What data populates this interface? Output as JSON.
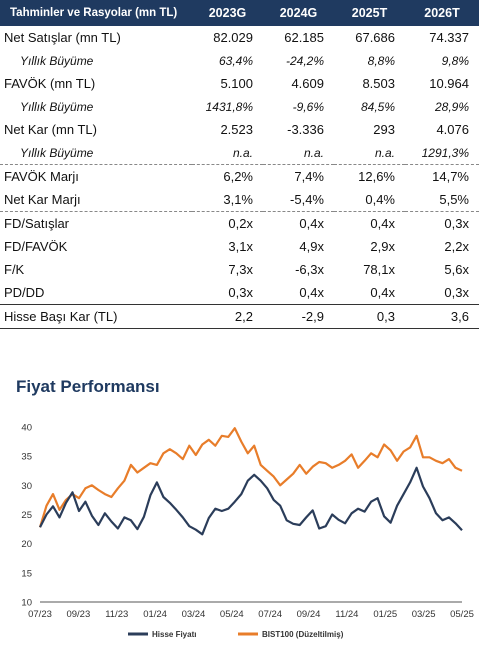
{
  "table": {
    "header": [
      "Tahminler ve Rasyolar (mn TL)",
      "2023G",
      "2024G",
      "2025T",
      "2026T"
    ],
    "rows": [
      {
        "label": "Net Satışlar (mn TL)",
        "values": [
          "82.029",
          "62.185",
          "67.686",
          "74.337"
        ],
        "style": "normal",
        "sep": ""
      },
      {
        "label": "Yıllık Büyüme",
        "values": [
          "63,4%",
          "-24,2%",
          "8,8%",
          "9,8%"
        ],
        "style": "growth",
        "sep": ""
      },
      {
        "label": "FAVÖK (mn TL)",
        "values": [
          "5.100",
          "4.609",
          "8.503",
          "10.964"
        ],
        "style": "normal",
        "sep": ""
      },
      {
        "label": "Yıllık Büyüme",
        "values": [
          "1431,8%",
          "-9,6%",
          "84,5%",
          "28,9%"
        ],
        "style": "growth",
        "sep": ""
      },
      {
        "label": "Net Kar (mn TL)",
        "values": [
          "2.523",
          "-3.336",
          "293",
          "4.076"
        ],
        "style": "normal",
        "sep": ""
      },
      {
        "label": "Yıllık Büyüme",
        "values": [
          "n.a.",
          "n.a.",
          "n.a.",
          "1291,3%"
        ],
        "style": "growth",
        "sep": ""
      },
      {
        "label": "FAVÖK Marjı",
        "values": [
          "6,2%",
          "7,4%",
          "12,6%",
          "14,7%"
        ],
        "style": "normal",
        "sep": "dotted"
      },
      {
        "label": "Net Kar Marjı",
        "values": [
          "3,1%",
          "-5,4%",
          "0,4%",
          "5,5%"
        ],
        "style": "normal",
        "sep": ""
      },
      {
        "label": "FD/Satışlar",
        "values": [
          "0,2x",
          "0,4x",
          "0,4x",
          "0,3x"
        ],
        "style": "normal",
        "sep": "dotted"
      },
      {
        "label": "FD/FAVÖK",
        "values": [
          "3,1x",
          "4,9x",
          "2,9x",
          "2,2x"
        ],
        "style": "normal",
        "sep": ""
      },
      {
        "label": "F/K",
        "values": [
          "7,3x",
          "-6,3x",
          "78,1x",
          "5,6x"
        ],
        "style": "normal",
        "sep": ""
      },
      {
        "label": "PD/DD",
        "values": [
          "0,3x",
          "0,4x",
          "0,4x",
          "0,3x"
        ],
        "style": "normal",
        "sep": ""
      },
      {
        "label": "Hisse Başı Kar (TL)",
        "values": [
          "2,2",
          "-2,9",
          "0,3",
          "3,6"
        ],
        "style": "normal",
        "sep": "solid"
      }
    ]
  },
  "chart_title": "Fiyat Performansı",
  "chart_data": {
    "type": "line",
    "title": "Fiyat Performansı",
    "x_tick_labels": [
      "07/23",
      "09/23",
      "11/23",
      "01/24",
      "03/24",
      "05/24",
      "07/24",
      "09/24",
      "11/24",
      "01/25",
      "03/25",
      "05/25"
    ],
    "ylim": [
      10,
      40
    ],
    "y_ticks": [
      10,
      15,
      20,
      25,
      30,
      35,
      40
    ],
    "grid": false,
    "legend_position": "bottom",
    "series": [
      {
        "name": "Hisse Fiyatı",
        "color": "#2b3d5a",
        "values": [
          22.8,
          25.0,
          26.4,
          24.5,
          27.0,
          28.8,
          25.6,
          27.2,
          24.8,
          23.2,
          25.2,
          23.8,
          22.6,
          24.5,
          24.0,
          22.5,
          24.6,
          28.3,
          30.5,
          28.0,
          27.0,
          25.8,
          24.5,
          23.0,
          22.4,
          21.6,
          24.4,
          26.0,
          25.6,
          26.0,
          27.2,
          28.5,
          30.8,
          31.8,
          30.8,
          29.5,
          27.5,
          26.5,
          24.0,
          23.4,
          23.2,
          24.5,
          25.7,
          22.6,
          23.0,
          25.0,
          24.1,
          23.5,
          25.2,
          26.0,
          25.5,
          27.2,
          27.8,
          24.7,
          23.6,
          26.5,
          28.5,
          30.5,
          33.0,
          29.8,
          27.8,
          25.2,
          24.0,
          24.5,
          23.5,
          22.3
        ]
      },
      {
        "name": "BIST100 (Düzeltilmiş)",
        "color": "#e87d2a",
        "values": [
          22.8,
          26.5,
          28.5,
          25.8,
          27.5,
          28.5,
          27.8,
          29.5,
          30.0,
          29.2,
          28.5,
          28.0,
          29.5,
          30.8,
          33.5,
          32.2,
          33.0,
          33.8,
          33.5,
          35.5,
          36.2,
          35.5,
          34.5,
          36.8,
          35.2,
          37.0,
          37.8,
          36.8,
          38.5,
          38.3,
          39.8,
          37.5,
          35.5,
          36.8,
          33.5,
          32.5,
          31.5,
          30.0,
          31.0,
          32.0,
          33.5,
          32.0,
          33.2,
          34.0,
          33.8,
          33.0,
          33.5,
          34.2,
          35.3,
          33.0,
          34.2,
          35.5,
          34.8,
          37.0,
          36.0,
          34.2,
          35.8,
          36.5,
          38.5,
          34.8,
          34.8,
          34.2,
          33.8,
          34.5,
          33.0,
          32.5
        ]
      }
    ]
  }
}
